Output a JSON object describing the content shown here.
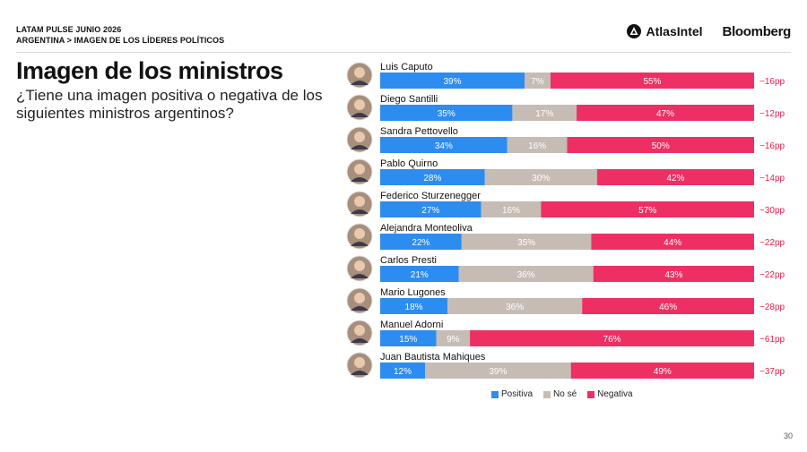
{
  "header": {
    "line1": "LATAM PULSE JUNIO 2026",
    "line2": "ARGENTINA > IMAGEN DE LOS LÍDERES POLÍTICOS",
    "brand1": "AtlasIntel",
    "brand2": "Bloomberg"
  },
  "page_number": "30",
  "colors": {
    "positiva": "#2d8cf0",
    "no_se": "#c6bcb6",
    "negativa": "#ee2f63",
    "net": "#e8214f"
  },
  "chart_data": {
    "type": "bar",
    "orientation": "horizontal",
    "stacked": true,
    "title": "Imagen de los ministros",
    "subtitle": "¿Tiene una imagen positiva o negativa de los siguientes ministros argentinos?",
    "categories": [
      "Luis Caputo",
      "Diego Santilli",
      "Sandra Pettovello",
      "Pablo Quirno",
      "Federico Sturzenegger",
      "Alejandra Monteoliva",
      "Carlos Presti",
      "Mario Lugones",
      "Manuel Adorni",
      "Juan Bautista Mahiques"
    ],
    "series": [
      {
        "name": "Positiva",
        "values": [
          39,
          35,
          34,
          28,
          27,
          22,
          21,
          18,
          15,
          12
        ]
      },
      {
        "name": "No sé",
        "values": [
          7,
          17,
          16,
          30,
          16,
          35,
          36,
          36,
          9,
          39
        ]
      },
      {
        "name": "Negativa",
        "values": [
          55,
          47,
          50,
          42,
          57,
          44,
          43,
          46,
          76,
          49
        ]
      }
    ],
    "net": [
      "-16pp",
      "-12pp",
      "-16pp",
      "-14pp",
      "-30pp",
      "-22pp",
      "-22pp",
      "-28pp",
      "-61pp",
      "-37pp"
    ],
    "legend_position": "bottom",
    "grid": false
  }
}
